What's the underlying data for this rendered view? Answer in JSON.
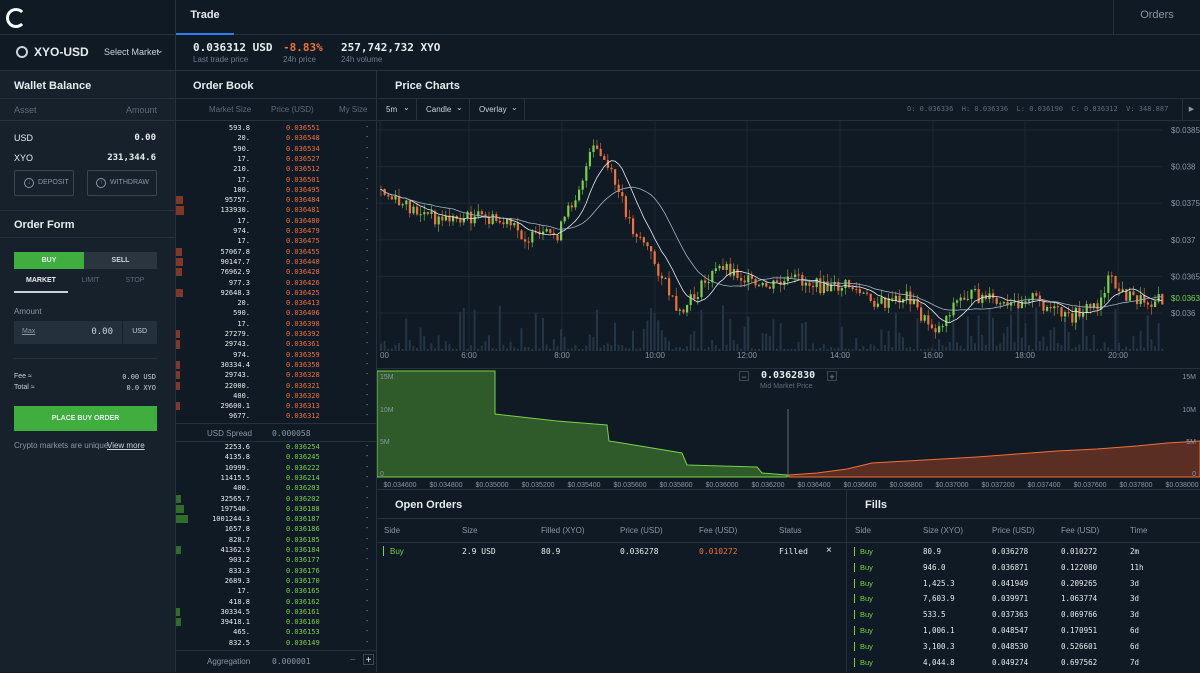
{
  "topbar": {
    "tab_trade": "Trade",
    "tab_orders": "Orders"
  },
  "ticker": {
    "pair": "XYO-USD",
    "select_market": "Select Market",
    "last_price": "0.036312 USD",
    "last_price_label": "Last trade price",
    "change": "-8.83%",
    "change_label": "24h price",
    "volume": "257,742,732 XYO",
    "volume_label": "24h volume"
  },
  "wallet": {
    "title": "Wallet Balance",
    "col_asset": "Asset",
    "col_amount": "Amount",
    "rows": [
      {
        "asset": "USD",
        "amount": "0.00"
      },
      {
        "asset": "XYO",
        "amount": "231,344.6"
      }
    ],
    "deposit": "DEPOSIT",
    "withdraw": "WITHDRAW"
  },
  "order_form": {
    "title": "Order Form",
    "buy": "BUY",
    "sell": "SELL",
    "market": "MARKET",
    "limit": "LIMIT",
    "stop": "STOP",
    "amount_label": "Amount",
    "max": "Max",
    "amount_value": "0.00",
    "amount_unit": "USD",
    "fee_label": "Fee ≈",
    "fee_value": "0.00 USD",
    "total_label": "Total ≈",
    "total_value": "0.0 XYO",
    "place_order": "PLACE BUY ORDER",
    "note": "Crypto markets are unique.",
    "view_more": "View more"
  },
  "order_book": {
    "title": "Order Book",
    "col_size": "Market Size",
    "col_price": "Price (USD)",
    "col_my": "My Size",
    "asks": [
      {
        "size": "593.8",
        "price": "0.036551"
      },
      {
        "size": "20.",
        "price": "0.036548"
      },
      {
        "size": "590.",
        "price": "0.036534"
      },
      {
        "size": "17.",
        "price": "0.036527"
      },
      {
        "size": "210.",
        "price": "0.036512"
      },
      {
        "size": "17.",
        "price": "0.036501"
      },
      {
        "size": "100.",
        "price": "0.036495"
      },
      {
        "size": "95757.",
        "price": "0.036484"
      },
      {
        "size": "133930.",
        "price": "0.036481"
      },
      {
        "size": "17.",
        "price": "0.036480"
      },
      {
        "size": "974.",
        "price": "0.036479"
      },
      {
        "size": "17.",
        "price": "0.036475"
      },
      {
        "size": "57067.8",
        "price": "0.036455"
      },
      {
        "size": "90147.7",
        "price": "0.036440"
      },
      {
        "size": "76962.9",
        "price": "0.036428"
      },
      {
        "size": "977.3",
        "price": "0.036426"
      },
      {
        "size": "92648.3",
        "price": "0.036425"
      },
      {
        "size": "20.",
        "price": "0.036413"
      },
      {
        "size": "590.",
        "price": "0.036406"
      },
      {
        "size": "17.",
        "price": "0.036398"
      },
      {
        "size": "27279.",
        "price": "0.036392"
      },
      {
        "size": "29743.",
        "price": "0.036361"
      },
      {
        "size": "974.",
        "price": "0.036359"
      },
      {
        "size": "30334.4",
        "price": "0.036358"
      },
      {
        "size": "29743.",
        "price": "0.036328"
      },
      {
        "size": "22000.",
        "price": "0.036321"
      },
      {
        "size": "400.",
        "price": "0.036320"
      },
      {
        "size": "29600.1",
        "price": "0.036313"
      },
      {
        "size": "9677.",
        "price": "0.036312"
      }
    ],
    "spread_label": "USD Spread",
    "spread_value": "0.000058",
    "bids": [
      {
        "size": "2253.6",
        "price": "0.036254"
      },
      {
        "size": "4135.8",
        "price": "0.036245"
      },
      {
        "size": "10999.",
        "price": "0.036222"
      },
      {
        "size": "11415.5",
        "price": "0.036214"
      },
      {
        "size": "400.",
        "price": "0.036203"
      },
      {
        "size": "32565.7",
        "price": "0.036202"
      },
      {
        "size": "197540.",
        "price": "0.036188"
      },
      {
        "size": "1001244.3",
        "price": "0.036187"
      },
      {
        "size": "1657.8",
        "price": "0.036186"
      },
      {
        "size": "828.7",
        "price": "0.036185"
      },
      {
        "size": "41362.9",
        "price": "0.036184"
      },
      {
        "size": "903.2",
        "price": "0.036177"
      },
      {
        "size": "833.3",
        "price": "0.036176"
      },
      {
        "size": "2689.3",
        "price": "0.036170"
      },
      {
        "size": "17.",
        "price": "0.036165"
      },
      {
        "size": "418.8",
        "price": "0.036162"
      },
      {
        "size": "30334.5",
        "price": "0.036161"
      },
      {
        "size": "39418.1",
        "price": "0.036160"
      },
      {
        "size": "465.",
        "price": "0.036153"
      },
      {
        "size": "832.5",
        "price": "0.036149"
      }
    ],
    "aggregation_label": "Aggregation",
    "aggregation_value": "0.000001",
    "minus": "−",
    "plus": "+"
  },
  "price_chart": {
    "title": "Price Charts",
    "interval": "5m",
    "style": "Candle",
    "overlay": "Overlay",
    "ohlc": "O: 0.036336  H: 0.036336  L: 0.036190  C: 0.036312  V: 348.887",
    "current_price_label": "$0.036312",
    "y_ticks": [
      "$0.0385",
      "$0.038",
      "$0.0375",
      "$0.037",
      "$0.0365",
      "$0.036"
    ],
    "x_ticks": [
      "00",
      "6:00",
      "8:00",
      "10:00",
      "12:00",
      "14:00",
      "16:00",
      "18:00",
      "20:00"
    ]
  },
  "depth_chart": {
    "mid_price": "0.0362830",
    "mid_label": "Mid Market Price",
    "y_ticks_left": [
      "15M",
      "10M",
      "5M",
      "0"
    ],
    "y_ticks_right": [
      "15M",
      "10M",
      "5M",
      "0"
    ],
    "x_ticks": [
      "$0.034600",
      "$0.034800",
      "$0.035000",
      "$0.035200",
      "$0.035400",
      "$0.035600",
      "$0.035800",
      "$0.036000",
      "$0.036200",
      "$0.036400",
      "$0.036600",
      "$0.036800",
      "$0.037000",
      "$0.037200",
      "$0.037400",
      "$0.037600",
      "$0.037800",
      "$0.038000"
    ]
  },
  "open_orders": {
    "title": "Open Orders",
    "cols": [
      "Side",
      "Size",
      "Filled (XYO)",
      "Price (USD)",
      "Fee (USD)",
      "Status"
    ],
    "rows": [
      {
        "side": "Buy",
        "size": "2.9 USD",
        "filled": "80.9",
        "price": "0.036278",
        "fee": "0.010272",
        "status": "Filled"
      }
    ],
    "close": "×"
  },
  "fills": {
    "title": "Fills",
    "cols": [
      "Side",
      "Size (XYO)",
      "Price (USD)",
      "Fee (USD)",
      "Time"
    ],
    "rows": [
      {
        "side": "Buy",
        "size": "80.9",
        "price": "0.036278",
        "fee": "0.010272",
        "time": "2m"
      },
      {
        "side": "Buy",
        "size": "946.0",
        "price": "0.036871",
        "fee": "0.122080",
        "time": "11h"
      },
      {
        "side": "Buy",
        "size": "1,425.3",
        "price": "0.041949",
        "fee": "0.209265",
        "time": "3d"
      },
      {
        "side": "Buy",
        "size": "7,603.9",
        "price": "0.039971",
        "fee": "1.063774",
        "time": "3d"
      },
      {
        "side": "Buy",
        "size": "533.5",
        "price": "0.037363",
        "fee": "0.069766",
        "time": "3d"
      },
      {
        "side": "Buy",
        "size": "1,006.1",
        "price": "0.048547",
        "fee": "0.170951",
        "time": "6d"
      },
      {
        "side": "Buy",
        "size": "3,100.3",
        "price": "0.048530",
        "fee": "0.526601",
        "time": "6d"
      },
      {
        "side": "Buy",
        "size": "4,044.8",
        "price": "0.049274",
        "fee": "0.697562",
        "time": "7d"
      }
    ]
  },
  "colors": {
    "bg": "#0f1a24",
    "panel": "#16212c",
    "green": "#7bd148",
    "red": "#f0703a",
    "accent_buy": "#3fae3f"
  }
}
